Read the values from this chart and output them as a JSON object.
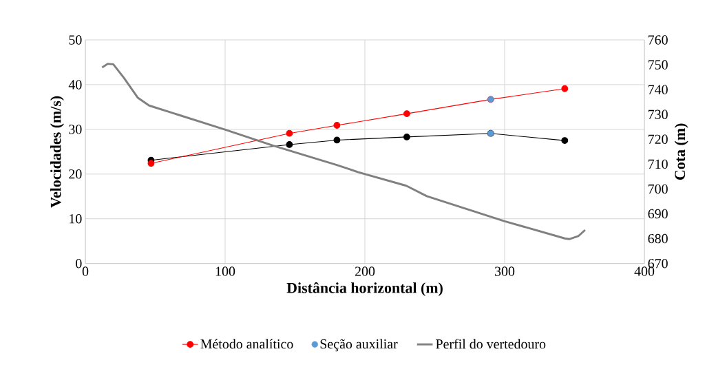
{
  "chart_data": {
    "type": "line",
    "xlabel": "Distância horizontal (m)",
    "ylabel": "Velocidades (m/s)",
    "y2label": "Cota (m)",
    "xlim": [
      0,
      400
    ],
    "xticks": [
      0,
      100,
      200,
      300,
      400
    ],
    "ylim": [
      0,
      50
    ],
    "yticks": [
      0,
      10,
      20,
      30,
      40,
      50
    ],
    "y2lim": [
      670,
      760
    ],
    "y2ticks": [
      670,
      680,
      690,
      700,
      710,
      720,
      730,
      740,
      750,
      760
    ],
    "grid": true,
    "legend": "bottom",
    "marker": "circle",
    "line_style": "solid",
    "series": [
      {
        "color": "#000000",
        "x": [
          47,
          146,
          180,
          230,
          290,
          343
        ],
        "values": [
          23.1,
          26.6,
          27.6,
          28.3,
          29.1,
          27.5
        ]
      },
      {
        "name": "Método analítico",
        "color": "#ff0000",
        "x": [
          47,
          146,
          180,
          230,
          290,
          343
        ],
        "values": [
          22.4,
          29.1,
          30.9,
          33.5,
          36.7,
          39.1
        ]
      },
      {
        "name": "Seção auxiliar",
        "type": "scatter",
        "color": "#5b9bd5",
        "x": [
          290,
          290
        ],
        "values": [
          29.1,
          36.7
        ]
      },
      {
        "name": "Perfil do vertedouro",
        "axis": "y2",
        "marker": "none",
        "color": "#808080",
        "x": [
          12,
          16,
          20,
          27.6,
          37.4,
          45.6,
          99.8,
          134.2,
          180.3,
          195,
          229.6,
          244.3,
          300.1,
          343,
          346.2,
          352.7,
          357.6
        ],
        "values": [
          748.9,
          750.4,
          750.2,
          744.7,
          736.8,
          733.6,
          723.9,
          717.5,
          709.6,
          706.8,
          701.3,
          697.1,
          687.0,
          680.1,
          679.8,
          681.0,
          683.5
        ]
      }
    ]
  }
}
